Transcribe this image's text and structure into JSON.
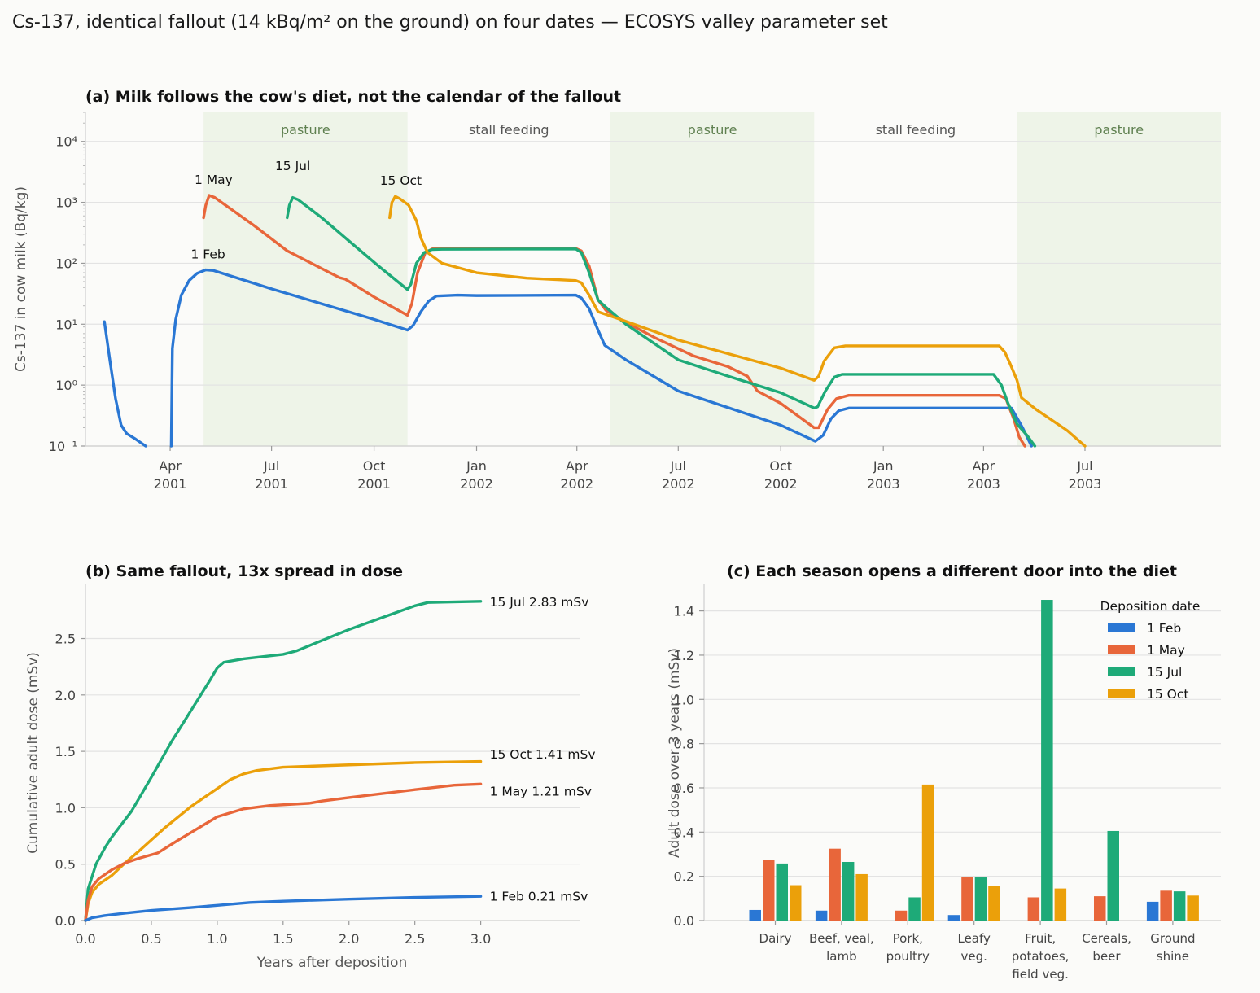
{
  "figure": {
    "suptitle": "Cs-137, identical fallout (14 kBq/m² on the ground) on four dates — ECOSYS valley parameter set"
  },
  "colors": {
    "1 Feb": "#2a77d4",
    "1 May": "#e8663a",
    "15 Jul": "#1eaa78",
    "15 Oct": "#eba00a",
    "pasture_band": "#eef4e8",
    "pasture_text": "#5f8050",
    "stall_text": "#555555"
  },
  "chart_data": [
    {
      "id": "a",
      "type": "line",
      "title": "(a) Milk follows the cow's diet, not the calendar of the fallout",
      "ylabel": "Cs-137 in cow milk (Bq/kg)",
      "yscale": "log",
      "ylim": [
        0.1,
        30000
      ],
      "yticks": [
        0.1,
        1,
        10,
        100,
        1000,
        10000
      ],
      "ytick_labels": [
        "10⁻¹",
        "10⁰",
        "10¹",
        "10²",
        "10³",
        "10⁴"
      ],
      "xlim": [
        "2001-01-15",
        "2003-10-31"
      ],
      "xticks": [
        "2001-04-01",
        "2001-07-01",
        "2001-10-01",
        "2002-01-01",
        "2002-04-01",
        "2002-07-01",
        "2002-10-01",
        "2003-01-01",
        "2003-04-01",
        "2003-07-01"
      ],
      "xtick_labels": [
        [
          "Apr",
          "2001"
        ],
        [
          "Jul",
          "2001"
        ],
        [
          "Oct",
          "2001"
        ],
        [
          "Jan",
          "2002"
        ],
        [
          "Apr",
          "2002"
        ],
        [
          "Jul",
          "2002"
        ],
        [
          "Oct",
          "2002"
        ],
        [
          "Jan",
          "2003"
        ],
        [
          "Apr",
          "2003"
        ],
        [
          "Jul",
          "2003"
        ]
      ],
      "grid": true,
      "bands": [
        {
          "label": "pasture",
          "start": "2001-05-01",
          "end": "2001-10-31",
          "shaded": true
        },
        {
          "label": "stall feeding",
          "start": "2001-10-31",
          "end": "2002-05-01",
          "shaded": false
        },
        {
          "label": "pasture",
          "start": "2002-05-01",
          "end": "2002-10-31",
          "shaded": true
        },
        {
          "label": "stall feeding",
          "start": "2002-10-31",
          "end": "2003-05-01",
          "shaded": false
        },
        {
          "label": "pasture",
          "start": "2003-05-01",
          "end": "2003-10-31",
          "shaded": true
        }
      ],
      "annotations": [
        {
          "text": "1 Feb",
          "x": "2001-05-05",
          "y": 120
        },
        {
          "text": "1 May",
          "x": "2001-05-10",
          "y": 2000
        },
        {
          "text": "15 Jul",
          "x": "2001-07-20",
          "y": 3400
        },
        {
          "text": "15 Oct",
          "x": "2001-10-25",
          "y": 1950
        }
      ],
      "series": [
        {
          "name": "1 Feb",
          "points": [
            [
              "2001-02-01",
              11
            ],
            [
              "2001-02-06",
              2.5
            ],
            [
              "2001-02-11",
              0.6
            ],
            [
              "2001-02-16",
              0.22
            ],
            [
              "2001-02-21",
              0.16
            ],
            [
              "2001-03-01",
              0.13
            ],
            [
              "2001-03-10",
              0.1
            ]
          ]
        },
        {
          "name": "1 Feb",
          "points": [
            [
              "2001-04-02",
              0.1
            ],
            [
              "2001-04-03",
              4
            ],
            [
              "2001-04-06",
              12
            ],
            [
              "2001-04-11",
              30
            ],
            [
              "2001-04-18",
              52
            ],
            [
              "2001-04-25",
              68
            ],
            [
              "2001-05-03",
              78
            ],
            [
              "2001-05-10",
              76
            ],
            [
              "2001-07-01",
              38
            ],
            [
              "2001-10-01",
              12
            ],
            [
              "2001-10-31",
              8
            ],
            [
              "2001-11-05",
              9.5
            ],
            [
              "2001-11-12",
              16
            ],
            [
              "2001-11-19",
              24
            ],
            [
              "2001-11-26",
              29
            ],
            [
              "2001-12-15",
              30
            ],
            [
              "2002-01-01",
              29.5
            ],
            [
              "2002-03-31",
              30
            ],
            [
              "2002-04-05",
              27
            ],
            [
              "2002-04-12",
              18
            ],
            [
              "2002-04-20",
              8
            ],
            [
              "2002-04-26",
              4.5
            ],
            [
              "2002-05-15",
              2.6
            ],
            [
              "2002-07-01",
              0.8
            ],
            [
              "2002-10-01",
              0.22
            ],
            [
              "2002-11-01",
              0.12
            ],
            [
              "2002-11-08",
              0.15
            ],
            [
              "2002-11-15",
              0.28
            ],
            [
              "2002-11-22",
              0.38
            ],
            [
              "2002-12-01",
              0.42
            ],
            [
              "2003-04-15",
              0.42
            ],
            [
              "2003-04-26",
              0.42
            ],
            [
              "2003-05-06",
              0.2
            ],
            [
              "2003-05-14",
              0.1
            ]
          ]
        },
        {
          "name": "1 May",
          "points": [
            [
              "2001-05-01",
              560
            ],
            [
              "2001-05-03",
              900
            ],
            [
              "2001-05-06",
              1300
            ],
            [
              "2001-05-11",
              1200
            ],
            [
              "2001-06-15",
              420
            ],
            [
              "2001-07-15",
              160
            ],
            [
              "2001-08-31",
              58
            ],
            [
              "2001-09-05",
              55
            ],
            [
              "2001-10-01",
              28
            ],
            [
              "2001-10-31",
              14
            ],
            [
              "2001-11-04",
              22
            ],
            [
              "2001-11-09",
              70
            ],
            [
              "2001-11-16",
              150
            ],
            [
              "2001-11-23",
              175
            ],
            [
              "2001-12-01",
              175
            ],
            [
              "2002-03-31",
              175
            ],
            [
              "2002-04-05",
              160
            ],
            [
              "2002-04-12",
              90
            ],
            [
              "2002-04-20",
              25
            ],
            [
              "2002-04-27",
              17
            ],
            [
              "2002-05-10",
              12
            ],
            [
              "2002-06-10",
              6
            ],
            [
              "2002-07-15",
              3
            ],
            [
              "2002-08-15",
              2
            ],
            [
              "2002-09-01",
              1.4
            ],
            [
              "2002-09-10",
              0.8
            ],
            [
              "2002-10-01",
              0.5
            ],
            [
              "2002-10-31",
              0.2
            ],
            [
              "2002-11-04",
              0.2
            ],
            [
              "2002-11-12",
              0.4
            ],
            [
              "2002-11-20",
              0.6
            ],
            [
              "2002-12-01",
              0.68
            ],
            [
              "2003-04-15",
              0.68
            ],
            [
              "2003-04-21",
              0.6
            ],
            [
              "2003-04-28",
              0.28
            ],
            [
              "2003-05-03",
              0.14
            ],
            [
              "2003-05-08",
              0.1
            ]
          ]
        },
        {
          "name": "15 Jul",
          "points": [
            [
              "2001-07-15",
              560
            ],
            [
              "2001-07-17",
              900
            ],
            [
              "2001-07-20",
              1200
            ],
            [
              "2001-07-25",
              1100
            ],
            [
              "2001-08-15",
              560
            ],
            [
              "2001-09-10",
              220
            ],
            [
              "2001-10-05",
              90
            ],
            [
              "2001-10-31",
              37
            ],
            [
              "2001-11-03",
              45
            ],
            [
              "2001-11-08",
              100
            ],
            [
              "2001-11-15",
              150
            ],
            [
              "2001-11-22",
              168
            ],
            [
              "2001-12-01",
              170
            ],
            [
              "2002-03-31",
              172
            ],
            [
              "2002-04-05",
              150
            ],
            [
              "2002-04-12",
              70
            ],
            [
              "2002-04-20",
              25
            ],
            [
              "2002-04-27",
              19
            ],
            [
              "2002-05-15",
              10
            ],
            [
              "2002-07-01",
              2.6
            ],
            [
              "2002-08-15",
              1.4
            ],
            [
              "2002-10-01",
              0.75
            ],
            [
              "2002-10-31",
              0.42
            ],
            [
              "2002-11-03",
              0.44
            ],
            [
              "2002-11-10",
              0.8
            ],
            [
              "2002-11-18",
              1.35
            ],
            [
              "2002-11-25",
              1.5
            ],
            [
              "2003-04-10",
              1.5
            ],
            [
              "2003-04-17",
              1.0
            ],
            [
              "2003-04-23",
              0.5
            ],
            [
              "2003-05-01",
              0.23
            ],
            [
              "2003-05-10",
              0.15
            ],
            [
              "2003-05-17",
              0.1
            ]
          ]
        },
        {
          "name": "15 Oct",
          "points": [
            [
              "2001-10-15",
              560
            ],
            [
              "2001-10-17",
              1000
            ],
            [
              "2001-10-20",
              1250
            ],
            [
              "2001-10-24",
              1150
            ],
            [
              "2001-11-01",
              900
            ],
            [
              "2001-11-08",
              500
            ],
            [
              "2001-11-12",
              260
            ],
            [
              "2001-11-18",
              150
            ],
            [
              "2001-12-01",
              100
            ],
            [
              "2002-01-01",
              70
            ],
            [
              "2002-02-15",
              57
            ],
            [
              "2002-03-31",
              52
            ],
            [
              "2002-04-05",
              48
            ],
            [
              "2002-04-12",
              30
            ],
            [
              "2002-04-20",
              16
            ],
            [
              "2002-05-10",
              12
            ],
            [
              "2002-07-01",
              5.5
            ],
            [
              "2002-10-01",
              1.9
            ],
            [
              "2002-10-31",
              1.2
            ],
            [
              "2002-11-04",
              1.4
            ],
            [
              "2002-11-09",
              2.5
            ],
            [
              "2002-11-18",
              4.1
            ],
            [
              "2002-11-28",
              4.4
            ],
            [
              "2003-04-15",
              4.4
            ],
            [
              "2003-04-20",
              3.5
            ],
            [
              "2003-04-25",
              2.2
            ],
            [
              "2003-05-01",
              1.2
            ],
            [
              "2003-05-05",
              0.62
            ],
            [
              "2003-05-18",
              0.4
            ],
            [
              "2003-06-15",
              0.18
            ],
            [
              "2003-07-01",
              0.1
            ]
          ]
        }
      ]
    },
    {
      "id": "b",
      "type": "line",
      "title": "(b) Same fallout, 13x spread in dose",
      "xlabel": "Years after deposition",
      "ylabel": "Cumulative adult dose (mSv)",
      "xlim": [
        0,
        3.75
      ],
      "ylim": [
        0,
        2.98
      ],
      "xticks": [
        0.0,
        0.5,
        1.0,
        1.5,
        2.0,
        2.5,
        3.0
      ],
      "xtick_labels": [
        "0.0",
        "0.5",
        "1.0",
        "1.5",
        "2.0",
        "2.5",
        "3.0"
      ],
      "yticks": [
        0.0,
        0.5,
        1.0,
        1.5,
        2.0,
        2.5
      ],
      "ytick_labels": [
        "0.0",
        "0.5",
        "1.0",
        "1.5",
        "2.0",
        "2.5"
      ],
      "grid": true,
      "series": [
        {
          "name": "15 Jul",
          "end_label": "15 Jul  2.83 mSv",
          "label_y": 2.83,
          "x": [
            0,
            0.02,
            0.08,
            0.15,
            0.2,
            0.35,
            0.5,
            0.65,
            0.8,
            0.95,
            1.0,
            1.05,
            1.2,
            1.5,
            1.6,
            2.0,
            2.5,
            2.6,
            3.0
          ],
          "y": [
            0,
            0.28,
            0.5,
            0.65,
            0.74,
            0.97,
            1.27,
            1.58,
            1.86,
            2.14,
            2.24,
            2.29,
            2.32,
            2.36,
            2.39,
            2.58,
            2.79,
            2.82,
            2.83
          ]
        },
        {
          "name": "15 Oct",
          "end_label": "15 Oct  1.41 mSv",
          "label_y": 1.48,
          "x": [
            0,
            0.02,
            0.05,
            0.1,
            0.2,
            0.3,
            0.4,
            0.6,
            0.8,
            1.0,
            1.1,
            1.2,
            1.3,
            1.5,
            2.0,
            2.5,
            3.0
          ],
          "y": [
            0,
            0.15,
            0.25,
            0.32,
            0.4,
            0.51,
            0.61,
            0.82,
            1.01,
            1.17,
            1.25,
            1.3,
            1.33,
            1.36,
            1.38,
            1.4,
            1.41
          ]
        },
        {
          "name": "1 May",
          "end_label": "1 May  1.21 mSv",
          "label_y": 1.15,
          "x": [
            0,
            0.02,
            0.05,
            0.1,
            0.2,
            0.3,
            0.4,
            0.55,
            0.7,
            0.8,
            1.0,
            1.2,
            1.4,
            1.7,
            1.8,
            2.0,
            2.5,
            2.8,
            3.0
          ],
          "y": [
            0,
            0.18,
            0.3,
            0.37,
            0.45,
            0.51,
            0.55,
            0.6,
            0.71,
            0.78,
            0.92,
            0.99,
            1.02,
            1.04,
            1.06,
            1.09,
            1.16,
            1.2,
            1.21
          ]
        },
        {
          "name": "1 Feb",
          "end_label": "1 Feb  0.21 mSv",
          "label_y": 0.22,
          "x": [
            0,
            0.05,
            0.15,
            0.3,
            0.5,
            0.8,
            1.0,
            1.25,
            1.5,
            2.0,
            2.5,
            3.0
          ],
          "y": [
            0,
            0.025,
            0.045,
            0.065,
            0.09,
            0.115,
            0.135,
            0.16,
            0.172,
            0.19,
            0.205,
            0.215
          ]
        }
      ]
    },
    {
      "id": "c",
      "type": "bar",
      "title": "(c) Each season opens a different door into the diet",
      "ylabel": "Adult dose over 3 years (mSv)",
      "ylim": [
        0,
        1.52
      ],
      "yticks": [
        0.0,
        0.2,
        0.4,
        0.6,
        0.8,
        1.0,
        1.2,
        1.4
      ],
      "ytick_labels": [
        "0.0",
        "0.2",
        "0.4",
        "0.6",
        "0.8",
        "1.0",
        "1.2",
        "1.4"
      ],
      "grid": true,
      "legend": {
        "title": "Deposition date",
        "position": "top-right"
      },
      "categories": [
        [
          "Dairy"
        ],
        [
          "Beef, veal,",
          "lamb"
        ],
        [
          "Pork,",
          "poultry"
        ],
        [
          "Leafy",
          "veg."
        ],
        [
          "Fruit,",
          "potatoes,",
          "field veg."
        ],
        [
          "Cereals,",
          "beer"
        ],
        [
          "Ground",
          "shine"
        ]
      ],
      "series": [
        {
          "name": "1 Feb",
          "values": [
            0.048,
            0.045,
            0.0,
            0.025,
            0.0,
            0.0,
            0.085
          ]
        },
        {
          "name": "1 May",
          "values": [
            0.275,
            0.325,
            0.045,
            0.195,
            0.105,
            0.11,
            0.135
          ]
        },
        {
          "name": "15 Jul",
          "values": [
            0.258,
            0.265,
            0.105,
            0.195,
            1.45,
            0.405,
            0.132
          ]
        },
        {
          "name": "15 Oct",
          "values": [
            0.16,
            0.21,
            0.615,
            0.155,
            0.145,
            0.0,
            0.113
          ]
        }
      ]
    }
  ]
}
